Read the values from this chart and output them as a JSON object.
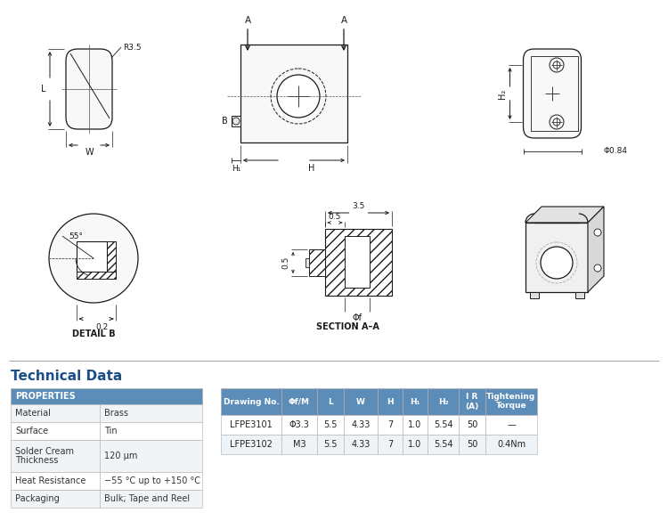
{
  "bg_color": "#ffffff",
  "line_color": "#1a1a1a",
  "blue_header": "#5b8db8",
  "header_text_color": "#ffffff",
  "title": "Technical Data",
  "title_color": "#1a4f8a",
  "properties_table": {
    "header": "PROPERTIES",
    "rows": [
      [
        "Material",
        "Brass"
      ],
      [
        "Surface",
        "Tin"
      ],
      [
        "Solder Cream\nThickness",
        "120 μm"
      ],
      [
        "Heat Resistance",
        "−55 °C up to +150 °C"
      ],
      [
        "Packaging",
        "Bulk; Tape and Reel"
      ]
    ]
  },
  "data_table": {
    "headers": [
      "Drawing No.",
      "Φf/M",
      "L",
      "W",
      "H",
      "H₁",
      "H₂",
      "I R\n(A)",
      "Tightening\nTorque"
    ],
    "rows": [
      [
        "LFPE3101",
        "Φ3.3",
        "5.5",
        "4.33",
        "7",
        "1.0",
        "5.54",
        "50",
        "—"
      ],
      [
        "LFPE3102",
        "M3",
        "5.5",
        "4.33",
        "7",
        "1.0",
        "5.54",
        "50",
        "0.4Nm"
      ]
    ]
  }
}
